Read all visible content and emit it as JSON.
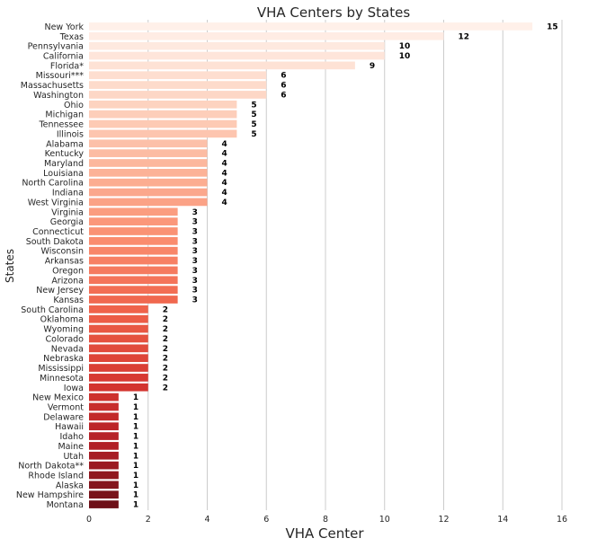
{
  "chart_data": {
    "type": "bar",
    "orientation": "horizontal",
    "title": "VHA Centers by States",
    "xlabel": "VHA Center",
    "ylabel": "States",
    "xlim": [
      0,
      16
    ],
    "xticks": [
      0,
      2,
      4,
      6,
      8,
      10,
      12,
      14,
      16
    ],
    "grid": "vertical",
    "palette": "Reds (light to dark, descending values)",
    "categories": [
      "New York",
      "Texas",
      "Pennsylvania",
      "California",
      "Florida*",
      "Missouri***",
      "Massachusetts",
      "Washington",
      "Ohio",
      "Michigan",
      "Tennessee",
      "Illinois",
      "Alabama",
      "Kentucky",
      "Maryland",
      "Louisiana",
      "North Carolina",
      "Indiana",
      "West Virginia",
      "Virginia",
      "Georgia",
      "Connecticut",
      "South Dakota",
      "Wisconsin",
      "Arkansas",
      "Oregon",
      "Arizona",
      "New Jersey",
      "Kansas",
      "South Carolina",
      "Oklahoma",
      "Wyoming",
      "Colorado",
      "Nevada",
      "Nebraska",
      "Mississippi",
      "Minnesota",
      "Iowa",
      "New Mexico",
      "Vermont",
      "Delaware",
      "Hawaii",
      "Idaho",
      "Maine",
      "Utah",
      "North Dakota**",
      "Rhode Island",
      "Alaska",
      "New Hampshire",
      "Montana"
    ],
    "values": [
      15,
      12,
      10,
      10,
      9,
      6,
      6,
      6,
      5,
      5,
      5,
      5,
      4,
      4,
      4,
      4,
      4,
      4,
      4,
      3,
      3,
      3,
      3,
      3,
      3,
      3,
      3,
      3,
      3,
      2,
      2,
      2,
      2,
      2,
      2,
      2,
      2,
      2,
      1,
      1,
      1,
      1,
      1,
      1,
      1,
      1,
      1,
      1,
      1,
      1
    ]
  }
}
